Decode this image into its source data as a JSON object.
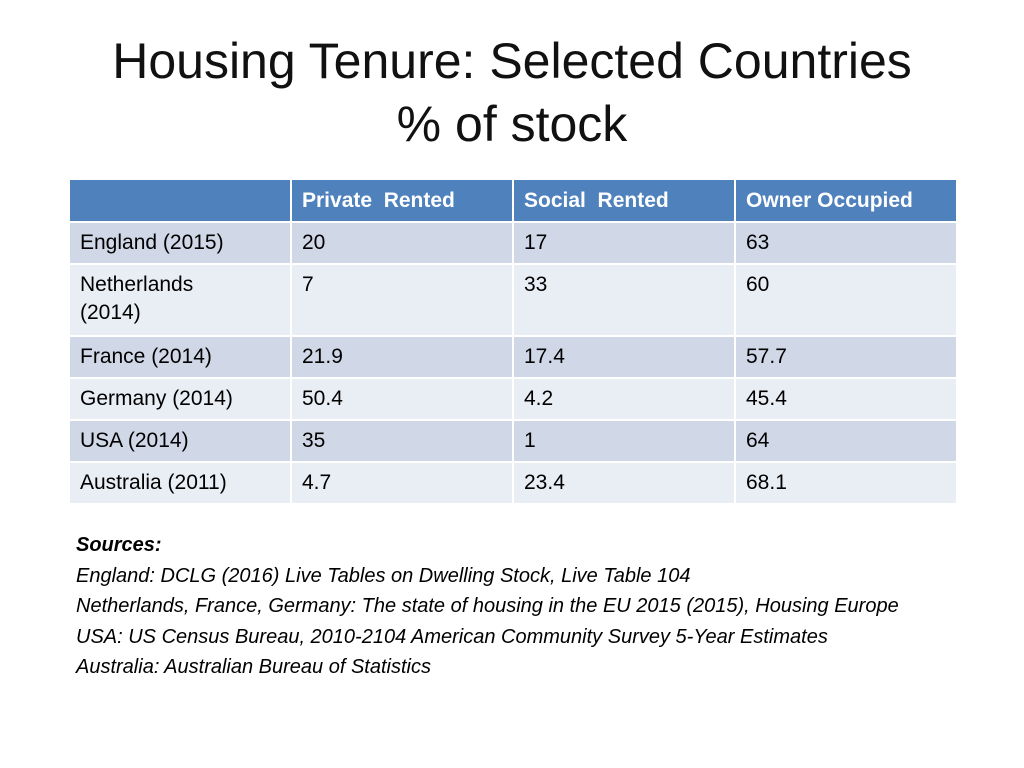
{
  "title": {
    "line1": "Housing Tenure: Selected Countries",
    "line2": "% of stock"
  },
  "table": {
    "headers": [
      "",
      "Private  Rented",
      "Social  Rented",
      "Owner Occupied"
    ],
    "rows": [
      [
        "England (2015)",
        "20",
        "17",
        "63"
      ],
      [
        "Netherlands (2014)",
        "7",
        "33",
        "60"
      ],
      [
        "France (2014)",
        "21.9",
        "17.4",
        "57.7"
      ],
      [
        "Germany (2014)",
        "50.4",
        "4.2",
        "45.4"
      ],
      [
        "USA (2014)",
        "35",
        "1",
        "64"
      ],
      [
        "Australia (2011)",
        "4.7",
        "23.4",
        "68.1"
      ]
    ]
  },
  "sources": {
    "heading": "Sources:",
    "lines": [
      "England: DCLG (2016) Live Tables on Dwelling Stock, Live Table 104",
      "Netherlands, France, Germany: The state of housing in the EU 2015 (2015), Housing Europe",
      "USA: US Census Bureau, 2010-2104 American Community Survey 5-Year Estimates",
      "Australia: Australian Bureau of Statistics"
    ]
  },
  "colors": {
    "header_bg": "#4f81bd",
    "row_dark": "#d0d8e8",
    "row_light": "#e9edf4"
  }
}
